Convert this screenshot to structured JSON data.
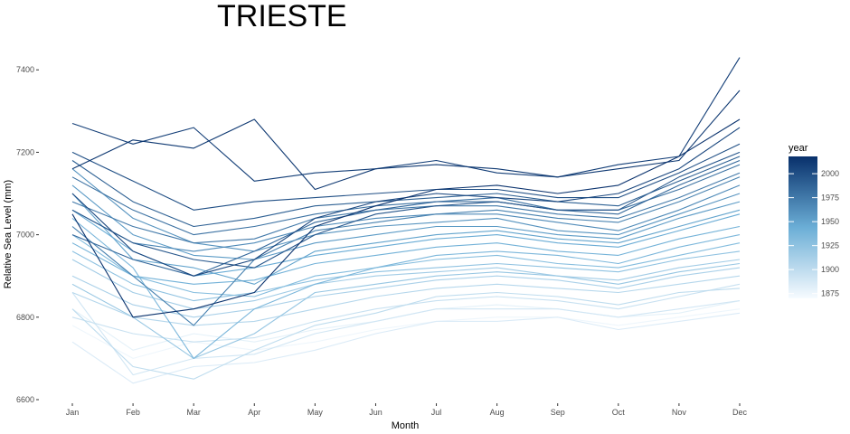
{
  "chart_data": {
    "type": "line",
    "title": "TRIESTE",
    "xlabel": "Month",
    "ylabel": "Relative Sea Level (mm)",
    "categories": [
      "Jan",
      "Feb",
      "Mar",
      "Apr",
      "May",
      "Jun",
      "Jul",
      "Aug",
      "Sep",
      "Oct",
      "Nov",
      "Dec"
    ],
    "ylim": [
      6600,
      7440
    ],
    "yticks": [
      6600,
      6800,
      7000,
      7200,
      7400
    ],
    "grid": false,
    "legend": {
      "title": "year",
      "placement": "right",
      "ticks": [
        1875,
        1900,
        1925,
        1950,
        1975,
        2000
      ],
      "range": [
        1870,
        2018
      ],
      "color_low": "#f7fbff",
      "color_mid": "#6baed6",
      "color_high": "#08306b"
    },
    "series": [
      {
        "year": 1875,
        "values": [
          6780,
          6700,
          6740,
          6720,
          6740,
          6770,
          6790,
          6800,
          6800,
          6780,
          6800,
          6820
        ]
      },
      {
        "year": 1880,
        "values": [
          6820,
          6720,
          6760,
          6740,
          6770,
          6790,
          6820,
          6830,
          6820,
          6800,
          6810,
          6840
        ]
      },
      {
        "year": 1885,
        "values": [
          6740,
          6640,
          6680,
          6690,
          6720,
          6760,
          6790,
          6790,
          6800,
          6770,
          6790,
          6810
        ]
      },
      {
        "year": 1890,
        "values": [
          6860,
          6660,
          6700,
          6710,
          6760,
          6790,
          6820,
          6820,
          6820,
          6800,
          6820,
          6840
        ]
      },
      {
        "year": 1895,
        "values": [
          6800,
          6760,
          6740,
          6750,
          6790,
          6820,
          6840,
          6850,
          6840,
          6820,
          6850,
          6880
        ]
      },
      {
        "year": 1900,
        "values": [
          6820,
          6680,
          6650,
          6720,
          6780,
          6810,
          6850,
          6860,
          6850,
          6830,
          6860,
          6870
        ]
      },
      {
        "year": 1905,
        "values": [
          6860,
          6800,
          6780,
          6790,
          6820,
          6850,
          6870,
          6880,
          6870,
          6860,
          6880,
          6900
        ]
      },
      {
        "year": 1910,
        "values": [
          6900,
          6830,
          6800,
          6820,
          6850,
          6870,
          6890,
          6900,
          6890,
          6870,
          6900,
          6920
        ]
      },
      {
        "year": 1915,
        "values": [
          6940,
          6860,
          6820,
          6840,
          6880,
          6900,
          6910,
          6920,
          6900,
          6890,
          6920,
          6940
        ]
      },
      {
        "year": 1920,
        "values": [
          6880,
          6800,
          6700,
          6760,
          6860,
          6880,
          6900,
          6910,
          6900,
          6880,
          6910,
          6930
        ]
      },
      {
        "year": 1925,
        "values": [
          6960,
          6880,
          6840,
          6860,
          6890,
          6910,
          6920,
          6930,
          6920,
          6910,
          6940,
          6960
        ]
      },
      {
        "year": 1930,
        "values": [
          7000,
          6900,
          6860,
          6850,
          6900,
          6920,
          6940,
          6950,
          6930,
          6920,
          6950,
          6980
        ]
      },
      {
        "year": 1935,
        "values": [
          7040,
          6920,
          6700,
          6820,
          6880,
          6920,
          6950,
          6960,
          6950,
          6930,
          6970,
          7000
        ]
      },
      {
        "year": 1940,
        "values": [
          6980,
          6900,
          6880,
          6890,
          6930,
          6950,
          6970,
          6980,
          6960,
          6950,
          6990,
          7020
        ]
      },
      {
        "year": 1945,
        "values": [
          7060,
          6960,
          6900,
          6920,
          6950,
          6970,
          6990,
          7000,
          6980,
          6970,
          7010,
          7050
        ]
      },
      {
        "year": 1950,
        "values": [
          7100,
          6940,
          6920,
          6880,
          6960,
          6980,
          7000,
          7010,
          6990,
          6980,
          7020,
          7060
        ]
      },
      {
        "year": 1955,
        "values": [
          7120,
          7000,
          6950,
          6940,
          6980,
          7000,
          7020,
          7020,
          7000,
          6990,
          7040,
          7080
        ]
      },
      {
        "year": 1960,
        "values": [
          7160,
          7040,
          6980,
          6960,
          7000,
          7020,
          7030,
          7040,
          7010,
          7000,
          7050,
          7100
        ]
      },
      {
        "year": 1965,
        "values": [
          7060,
          6980,
          6960,
          6980,
          7020,
          7040,
          7050,
          7050,
          7030,
          7010,
          7060,
          7120
        ]
      },
      {
        "year": 1970,
        "values": [
          7020,
          6900,
          6780,
          6940,
          7010,
          7030,
          7050,
          7060,
          7040,
          7030,
          7080,
          7140
        ]
      },
      {
        "year": 1975,
        "values": [
          7080,
          7020,
          6980,
          6990,
          7040,
          7060,
          7070,
          7070,
          7050,
          7040,
          7090,
          7150
        ]
      },
      {
        "year": 1980,
        "values": [
          7140,
          7060,
          7000,
          7020,
          7050,
          7070,
          7080,
          7090,
          7060,
          7060,
          7110,
          7170
        ]
      },
      {
        "year": 1985,
        "values": [
          7000,
          6940,
          6900,
          6960,
          7030,
          7060,
          7080,
          7080,
          7060,
          7050,
          7120,
          7180
        ]
      },
      {
        "year": 1990,
        "values": [
          7180,
          7080,
          7020,
          7040,
          7070,
          7080,
          7090,
          7100,
          7080,
          7070,
          7130,
          7190
        ]
      },
      {
        "year": 1995,
        "values": [
          7060,
          6980,
          6940,
          6920,
          7000,
          7050,
          7070,
          7080,
          7060,
          7060,
          7140,
          7200
        ]
      },
      {
        "year": 2000,
        "values": [
          7200,
          7130,
          7060,
          7080,
          7090,
          7100,
          7110,
          7110,
          7090,
          7090,
          7150,
          7220
        ]
      },
      {
        "year": 2005,
        "values": [
          7100,
          6960,
          6900,
          6940,
          7040,
          7080,
          7100,
          7090,
          7080,
          7100,
          7160,
          7260
        ]
      },
      {
        "year": 2010,
        "values": [
          7270,
          7220,
          7260,
          7130,
          7150,
          7160,
          7180,
          7150,
          7140,
          7170,
          7190,
          7430
        ]
      },
      {
        "year": 2013,
        "values": [
          7160,
          7230,
          7210,
          7280,
          7110,
          7160,
          7170,
          7160,
          7140,
          7160,
          7180,
          7350
        ]
      },
      {
        "year": 2016,
        "values": [
          7050,
          6800,
          6820,
          6860,
          7020,
          7070,
          7110,
          7120,
          7100,
          7120,
          7190,
          7280
        ]
      }
    ]
  }
}
